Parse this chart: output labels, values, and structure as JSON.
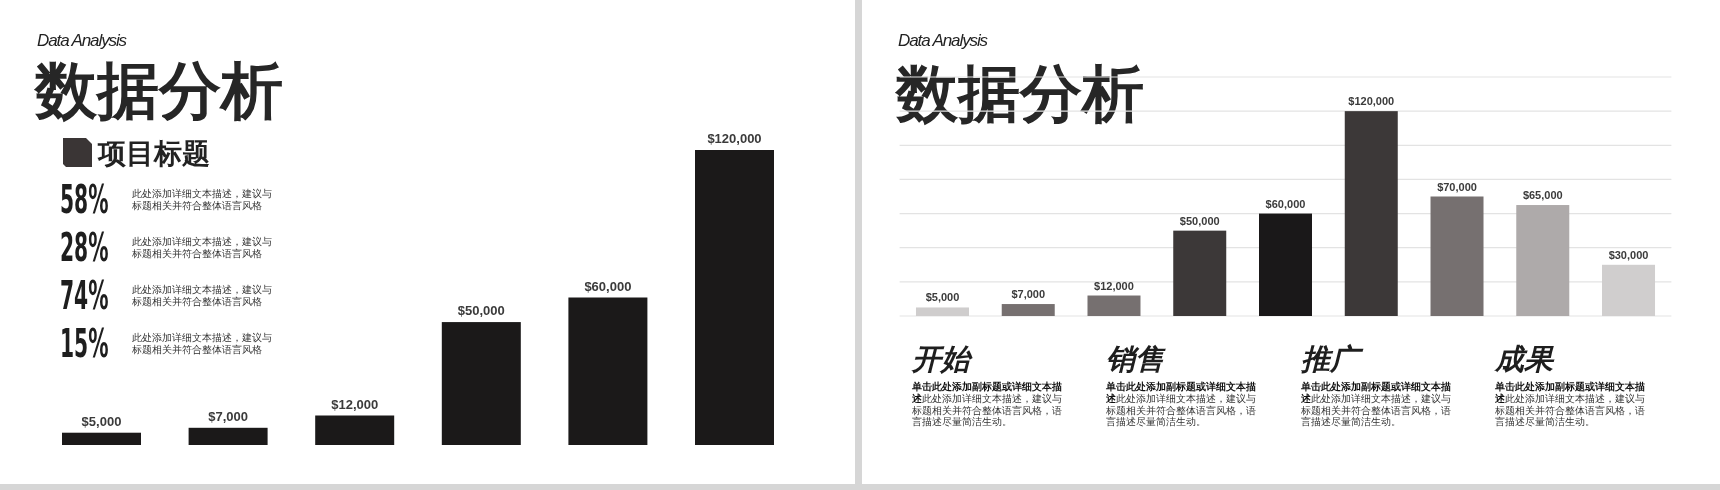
{
  "chart_data": [
    {
      "type": "other",
      "subtitle": "Data Analysis",
      "title": "数据分析",
      "annotations": [
        "项目标题",
        "58%",
        "此处添加详细文本描述，建议与标题相关并符合整体语言风格",
        "28%",
        "此处添加详细文本描述，建议与标题相关并符合整体语言风格",
        "74%",
        "此处添加详细文本描述，建议与标题相关并符合整体语言风格",
        "15%",
        "此处添加详细文本描述，建议与标题相关并符合整体语言风格"
      ]
    },
    {
      "type": "bar",
      "categories": [
        null,
        null,
        null,
        null,
        null,
        null
      ],
      "values": [
        5000,
        7000,
        12000,
        50000,
        60000,
        120000
      ],
      "value_labels": [
        "$5,000",
        "$7,000",
        "$12,000",
        "$50,000",
        "$60,000",
        "$120,000"
      ],
      "color": "#1b1919"
    },
    {
      "type": "bar",
      "subtitle": "Data Analysis",
      "title": "数据分析",
      "categories": [
        null,
        null,
        null,
        null,
        null,
        null,
        null,
        null,
        null
      ],
      "values": [
        5000,
        7000,
        12000,
        50000,
        60000,
        120000,
        70000,
        65000,
        30000
      ],
      "value_labels": [
        "$5,000",
        "$7,000",
        "$12,000",
        "$50,000",
        "$60,000",
        "$120,000",
        "$70,000",
        "$65,000",
        "$30,000"
      ],
      "colors": [
        "#cfcdcd",
        "#767070",
        "#767070",
        "#3c3838",
        "#1a1819",
        "#3c3838",
        "#767070",
        "#aeaaaa",
        "#d0cece"
      ],
      "ylim": [
        0,
        140000
      ],
      "yticks": [
        0,
        20000,
        40000,
        60000,
        80000,
        100000,
        120000,
        140000
      ],
      "grid": "y",
      "tick_labels": false,
      "annotations": [
        "开始",
        "**单击此处添加副标题或详细文本描述**此处添加详细文本描述，建议与标题相关并符合整体语言风格，语言描述尽量简洁生动。",
        "销售",
        "**单击此处添加副标题或详细文本描述**此处添加详细文本描述，建议与标题相关并符合整体语言风格，语言描述尽量简洁生动。",
        "推广",
        "**单击此处添加副标题或详细文本描述**此处添加详细文本描述，建议与标题相关并符合整体语言风格，语言描述尽量简洁生动。",
        "成果",
        "**单击此处添加副标题或详细文本描述**此处添加详细文本描述，建议与标题相关并符合整体语言风格，语言描述尽量简洁生动。"
      ]
    }
  ]
}
